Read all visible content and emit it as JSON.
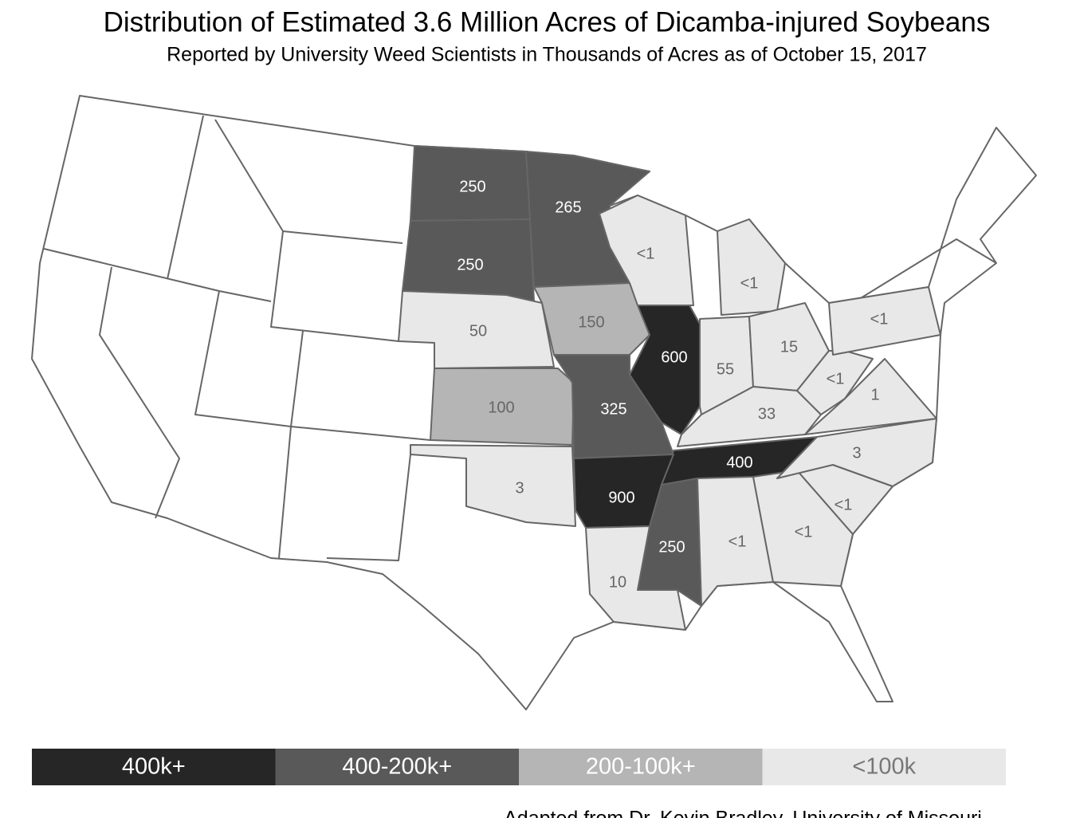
{
  "header": {
    "title": "Distribution of Estimated 3.6 Million Acres of Dicamba-injured Soybeans",
    "subtitle": "Reported by University Weed Scientists in Thousands of Acres as of October 15, 2017"
  },
  "states": [
    {
      "label": "250",
      "color": "#595959"
    },
    {
      "label": "250",
      "color": "#595959"
    },
    {
      "label": "265",
      "color": "#595959"
    },
    {
      "label": "50",
      "color": "#e8e8e8"
    },
    {
      "label": "150",
      "color": "#b5b5b5"
    },
    {
      "label": "100",
      "color": "#b5b5b5"
    },
    {
      "label": "325",
      "color": "#595959"
    },
    {
      "label": "600",
      "color": "#262626"
    },
    {
      "label": "<1",
      "color": "#e8e8e8"
    },
    {
      "label": "<1",
      "color": "#e8e8e8"
    },
    {
      "label": "55",
      "color": "#e8e8e8"
    },
    {
      "label": "15",
      "color": "#e8e8e8"
    },
    {
      "label": "33",
      "color": "#e8e8e8"
    },
    {
      "label": "400",
      "color": "#262626"
    },
    {
      "label": "900",
      "color": "#262626"
    },
    {
      "label": "250",
      "color": "#595959"
    },
    {
      "label": "10",
      "color": "#e8e8e8"
    },
    {
      "label": "<1",
      "color": "#e8e8e8"
    },
    {
      "label": "<1",
      "color": "#e8e8e8"
    },
    {
      "label": "<1",
      "color": "#e8e8e8"
    },
    {
      "label": "3",
      "color": "#e8e8e8"
    },
    {
      "label": "1",
      "color": "#e8e8e8"
    },
    {
      "label": "<1",
      "color": "#e8e8e8"
    },
    {
      "label": "<1",
      "color": "#e8e8e8"
    },
    {
      "label": "3",
      "color": "#e8e8e8"
    }
  ],
  "legend": [
    {
      "label": "400k+",
      "color": "#262626"
    },
    {
      "label": "400-200k+",
      "color": "#595959"
    },
    {
      "label": "200-100k+",
      "color": "#b5b5b5"
    },
    {
      "label": "<100k",
      "color": "#e8e8e8"
    }
  ],
  "footer": "Adapted from Dr. Kevin Bradley, University of Missouri"
}
